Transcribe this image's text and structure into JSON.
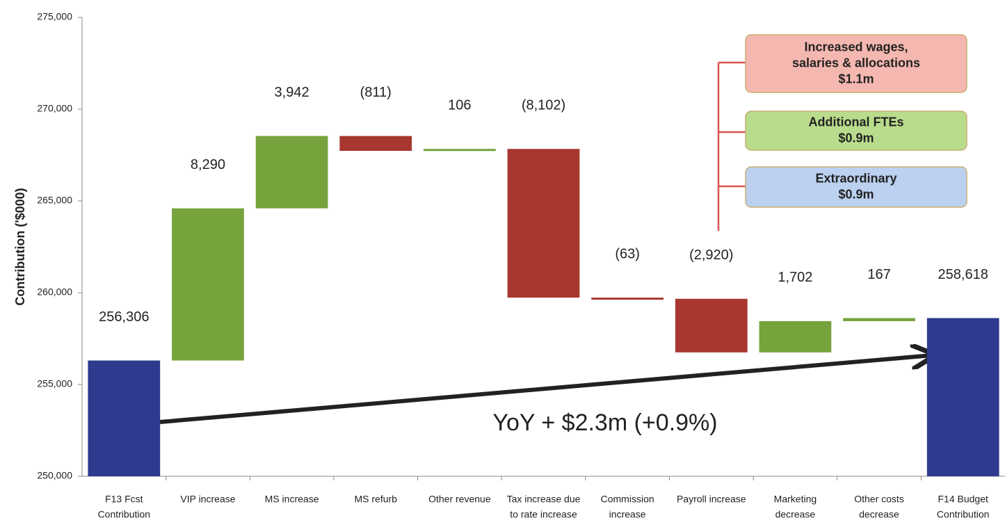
{
  "chart_data": {
    "type": "waterfall",
    "y_label": "Contribution ('$000)",
    "categories": [
      [
        "F13 Fcst",
        "Contribution"
      ],
      [
        "VIP increase"
      ],
      [
        "MS increase"
      ],
      [
        "MS refurb"
      ],
      [
        "Other revenue"
      ],
      [
        "Tax increase due",
        "to rate increase"
      ],
      [
        "Commission",
        "increase"
      ],
      [
        "Payroll increase"
      ],
      [
        "Marketing",
        "decrease"
      ],
      [
        "Other costs",
        "decrease"
      ],
      [
        "F14 Budget",
        "Contribution"
      ]
    ],
    "measure": [
      "absolute",
      "relative",
      "relative",
      "relative",
      "relative",
      "relative",
      "relative",
      "relative",
      "relative",
      "relative",
      "absolute"
    ],
    "values": [
      256306,
      8290,
      3942,
      -811,
      106,
      -8102,
      -63,
      -2920,
      1702,
      167,
      258618
    ],
    "value_labels": [
      "256,306",
      "8,290",
      "3,942",
      "(811)",
      "106",
      "(8,102)",
      "(63)",
      "(2,920)",
      "1,702",
      "167",
      "258,618"
    ],
    "colors": {
      "total": "#2d3a8e",
      "increase": "#76a33c",
      "decrease": "#a8372f"
    },
    "ylim": [
      250000,
      275000
    ],
    "yticks": [
      {
        "value": 250000,
        "label": "250,000"
      },
      {
        "value": 255000,
        "label": "255,000"
      },
      {
        "value": 260000,
        "label": "260,000"
      },
      {
        "value": 265000,
        "label": "265,000"
      },
      {
        "value": 270000,
        "label": "270,000"
      },
      {
        "value": 275000,
        "label": "275,000"
      }
    ],
    "annotation": "YoY + $2.3m (+0.9%)",
    "callouts": [
      {
        "lines": [
          "Increased wages,",
          "salaries & allocations",
          "$1.1m"
        ],
        "color": "#f5b8b0"
      },
      {
        "lines": [
          "Additional FTEs",
          "$0.9m"
        ],
        "color": "#b9dc8c"
      },
      {
        "lines": [
          "Extraordinary",
          "$0.9m"
        ],
        "color": "#bcd0f0"
      }
    ]
  }
}
